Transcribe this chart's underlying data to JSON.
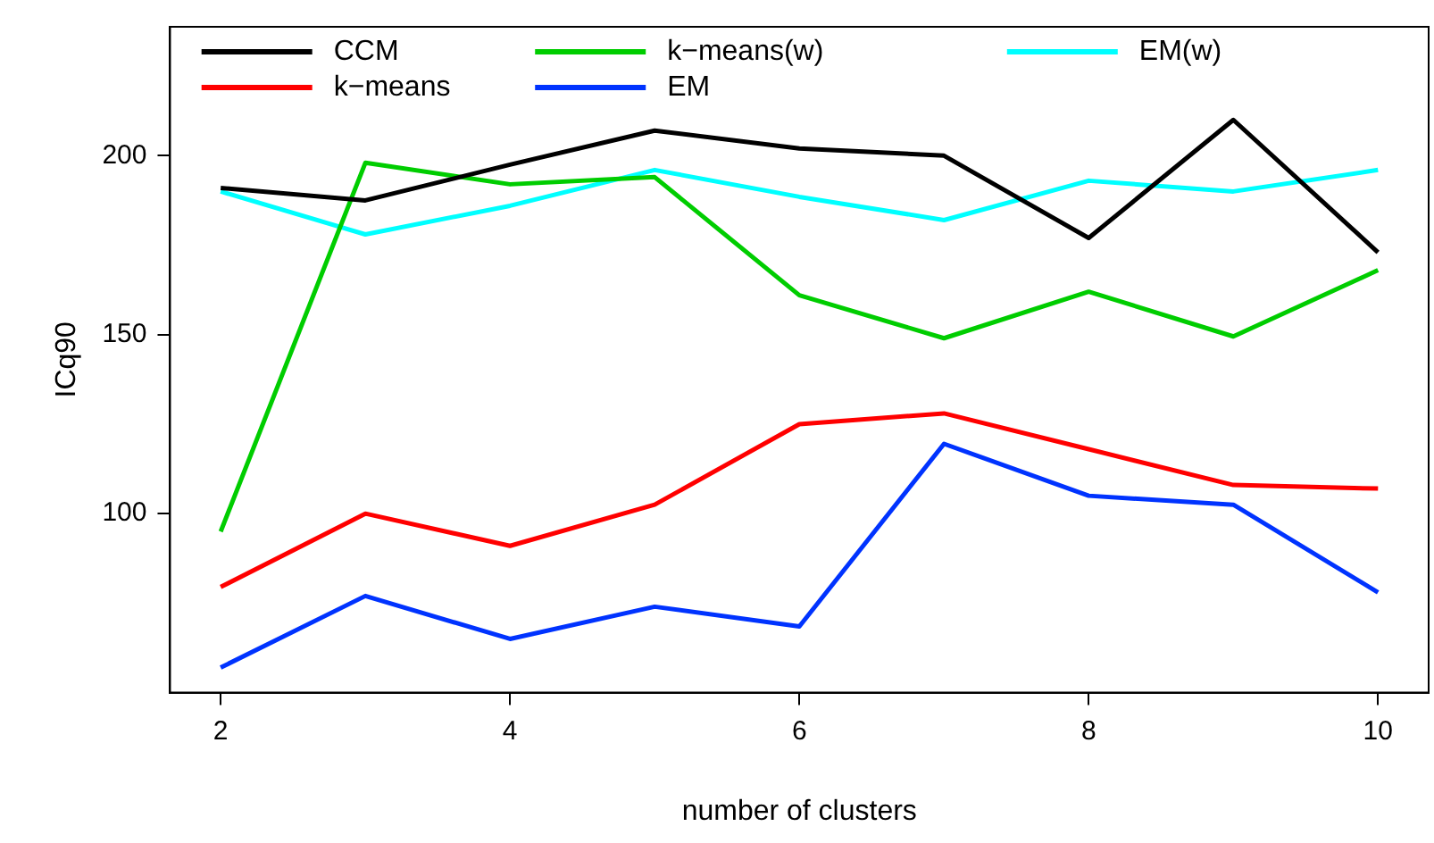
{
  "chart_data": {
    "type": "line",
    "xlabel": "number of clusters",
    "ylabel": "ICq90",
    "x": [
      2,
      3,
      4,
      5,
      6,
      7,
      8,
      9,
      10
    ],
    "xlim": [
      1.65,
      10.35
    ],
    "xticks": [
      2,
      4,
      6,
      8,
      10
    ],
    "ylim": [
      50,
      236
    ],
    "yticks": [
      100,
      150,
      200
    ],
    "grid": false,
    "legend": "top",
    "marker": "none",
    "line_style": "solid",
    "series": [
      {
        "name": "CCM",
        "color": "#000000",
        "values": [
          191,
          187.5,
          197.5,
          207,
          202,
          200,
          177,
          210,
          173
        ]
      },
      {
        "name": "k−means",
        "color": "#ff0000",
        "values": [
          79.5,
          100,
          91,
          102.5,
          125,
          128,
          118,
          108,
          107
        ]
      },
      {
        "name": "k−means(w)",
        "color": "#00cd00",
        "values": [
          95,
          198,
          192,
          194,
          161,
          149,
          162,
          149.5,
          168
        ]
      },
      {
        "name": "EM",
        "color": "#0033ff",
        "values": [
          57,
          77,
          65,
          74,
          68.5,
          119.5,
          105,
          102.5,
          78
        ]
      },
      {
        "name": "EM(w)",
        "color": "#00ffff",
        "values": [
          190,
          178,
          186,
          196,
          188.5,
          182,
          193,
          190,
          196
        ]
      }
    ]
  }
}
